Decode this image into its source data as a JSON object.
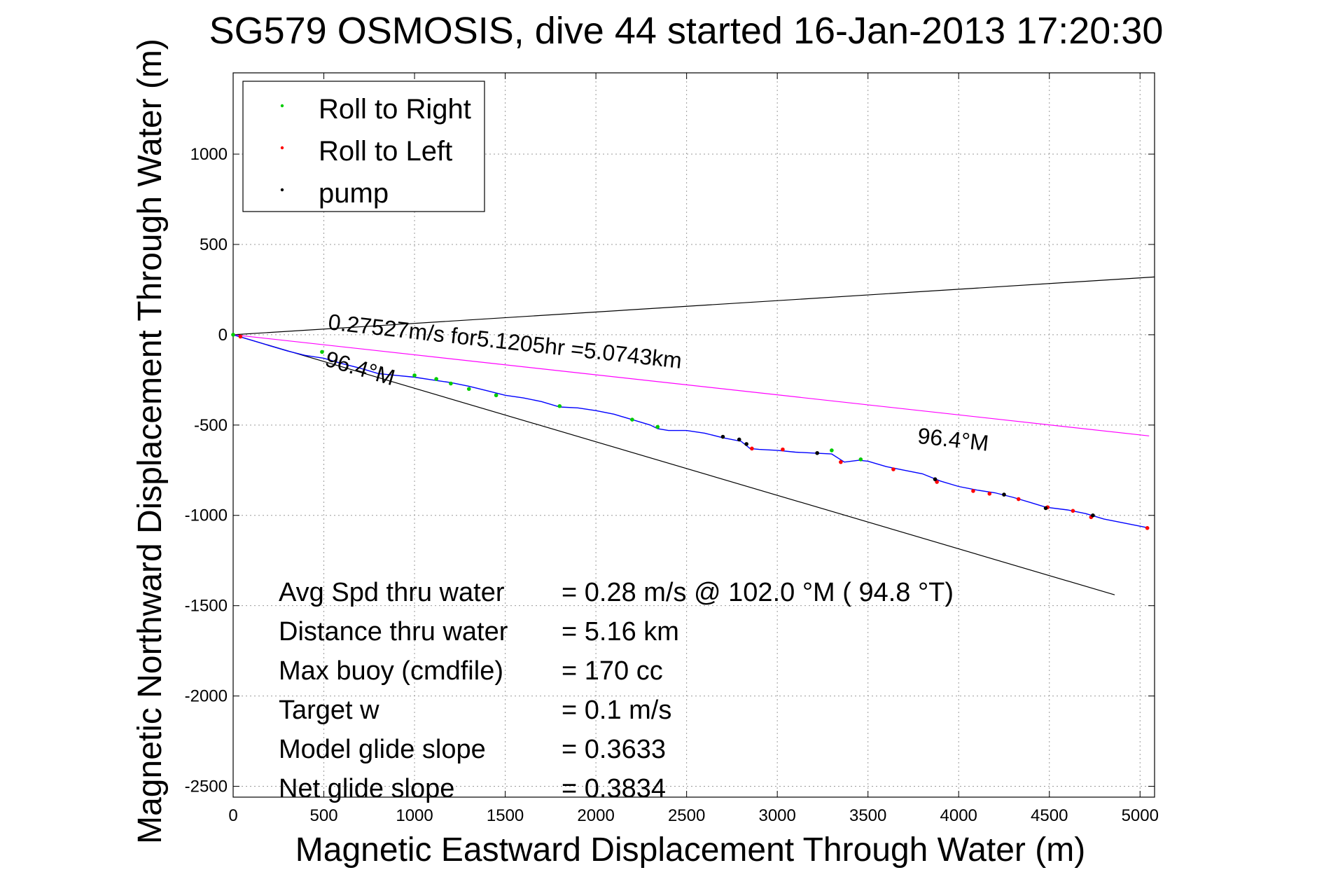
{
  "chart_data": {
    "type": "scatter",
    "title": "SG579 OSMOSIS, dive 44 started 16-Jan-2013 17:20:30",
    "xlabel": "Magnetic Eastward Displacement Through Water (m)",
    "ylabel": "Magnetic Northward Displacement Through Water (m)",
    "xlim": [
      0,
      5080
    ],
    "ylim": [
      -2560,
      1450
    ],
    "xticks": [
      0,
      500,
      1000,
      1500,
      2000,
      2500,
      3000,
      3500,
      4000,
      4500,
      5000
    ],
    "yticks": [
      -2500,
      -2000,
      -1500,
      -1000,
      -500,
      0,
      500,
      1000
    ],
    "grid": true,
    "legend": {
      "placement": "top-left",
      "entries": [
        {
          "label": "Roll to Right",
          "color": "#00cc00"
        },
        {
          "label": "Roll to Left",
          "color": "#ff0000"
        },
        {
          "label": "pump",
          "color": "#000000"
        }
      ]
    },
    "reference_lines": [
      {
        "color": "#000000",
        "points": [
          [
            0,
            0
          ],
          [
            5080,
            320
          ]
        ]
      },
      {
        "color": "#000000",
        "points": [
          [
            0,
            0
          ],
          [
            4860,
            -1440
          ]
        ]
      },
      {
        "color": "#ff00ff",
        "points": [
          [
            0,
            0
          ],
          [
            5050,
            -560
          ]
        ]
      }
    ],
    "annotations": [
      {
        "text": "0.27527m/s for5.1205hr =5.0743km",
        "x": 520,
        "y": 30,
        "rotate_along": 2
      },
      {
        "text": "96.4°M",
        "x": 500,
        "y": -170,
        "rotate_along": 1
      },
      {
        "text": "96.4°M",
        "x": 3770,
        "y": -600,
        "rotate_along": 2
      }
    ],
    "track": {
      "color": "#0000ff",
      "points": [
        [
          0,
          0
        ],
        [
          100,
          -30
        ],
        [
          200,
          -60
        ],
        [
          300,
          -90
        ],
        [
          400,
          -115
        ],
        [
          500,
          -130
        ],
        [
          600,
          -160
        ],
        [
          700,
          -185
        ],
        [
          800,
          -215
        ],
        [
          900,
          -225
        ],
        [
          1000,
          -235
        ],
        [
          1100,
          -250
        ],
        [
          1200,
          -265
        ],
        [
          1300,
          -285
        ],
        [
          1400,
          -310
        ],
        [
          1500,
          -335
        ],
        [
          1600,
          -350
        ],
        [
          1700,
          -370
        ],
        [
          1800,
          -400
        ],
        [
          1900,
          -405
        ],
        [
          2000,
          -420
        ],
        [
          2100,
          -440
        ],
        [
          2200,
          -470
        ],
        [
          2300,
          -500
        ],
        [
          2340,
          -520
        ],
        [
          2400,
          -530
        ],
        [
          2500,
          -530
        ],
        [
          2600,
          -545
        ],
        [
          2700,
          -570
        ],
        [
          2800,
          -590
        ],
        [
          2850,
          -630
        ],
        [
          2900,
          -635
        ],
        [
          3000,
          -640
        ],
        [
          3100,
          -650
        ],
        [
          3200,
          -655
        ],
        [
          3300,
          -660
        ],
        [
          3370,
          -705
        ],
        [
          3450,
          -695
        ],
        [
          3500,
          -700
        ],
        [
          3600,
          -730
        ],
        [
          3700,
          -750
        ],
        [
          3800,
          -770
        ],
        [
          3900,
          -810
        ],
        [
          4000,
          -840
        ],
        [
          4100,
          -860
        ],
        [
          4200,
          -875
        ],
        [
          4300,
          -900
        ],
        [
          4400,
          -930
        ],
        [
          4480,
          -955
        ],
        [
          4600,
          -970
        ],
        [
          4700,
          -990
        ],
        [
          4800,
          -1020
        ],
        [
          4900,
          -1040
        ],
        [
          5000,
          -1060
        ],
        [
          5050,
          -1070
        ]
      ]
    },
    "series": [
      {
        "name": "Roll to Right",
        "color": "#00cc00",
        "points": [
          [
            0,
            0
          ],
          [
            490,
            -95
          ],
          [
            1000,
            -225
          ],
          [
            1120,
            -245
          ],
          [
            1200,
            -270
          ],
          [
            1300,
            -300
          ],
          [
            1450,
            -335
          ],
          [
            1800,
            -395
          ],
          [
            2200,
            -470
          ],
          [
            2340,
            -510
          ],
          [
            3300,
            -640
          ],
          [
            3460,
            -690
          ]
        ]
      },
      {
        "name": "Roll to Left",
        "color": "#ff0000",
        "points": [
          [
            40,
            -10
          ],
          [
            2860,
            -630
          ],
          [
            3030,
            -635
          ],
          [
            3350,
            -705
          ],
          [
            3640,
            -745
          ],
          [
            3880,
            -815
          ],
          [
            4080,
            -865
          ],
          [
            4170,
            -880
          ],
          [
            4330,
            -910
          ],
          [
            4490,
            -955
          ],
          [
            4630,
            -975
          ],
          [
            4730,
            -1010
          ],
          [
            5040,
            -1070
          ]
        ]
      },
      {
        "name": "pump",
        "color": "#000000",
        "points": [
          [
            2700,
            -565
          ],
          [
            2790,
            -580
          ],
          [
            2830,
            -605
          ],
          [
            3220,
            -655
          ],
          [
            3870,
            -800
          ],
          [
            4250,
            -885
          ],
          [
            4480,
            -960
          ],
          [
            4740,
            -1000
          ]
        ]
      }
    ],
    "stats": [
      {
        "label": "Avg Spd thru water",
        "value": "=  0.28 m/s @ 102.0 °M ( 94.8 °T)"
      },
      {
        "label": "Distance thru water",
        "value": "=  5.16 km"
      },
      {
        "label": "Max buoy (cmdfile)",
        "value": "= 170 cc"
      },
      {
        "label": "Target w",
        "value": "= 0.1 m/s"
      },
      {
        "label": "Model glide slope",
        "value": "= 0.3633"
      },
      {
        "label": "Net glide slope",
        "value": "= 0.3834"
      }
    ]
  }
}
